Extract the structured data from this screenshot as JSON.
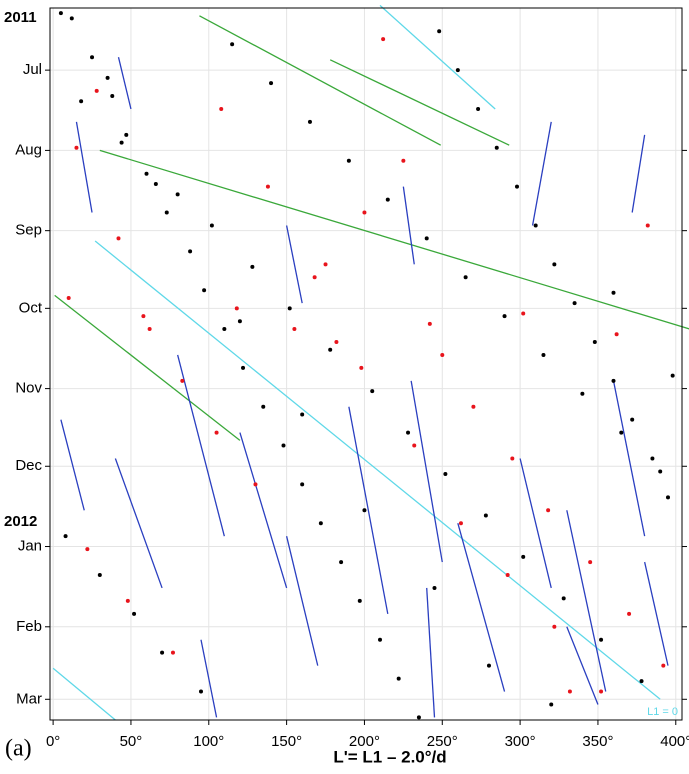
{
  "chart_data": {
    "type": "scatter",
    "xlabel": "L'= L1 – 2.0°/d",
    "panel_label": "(a)",
    "year_labels": [
      "2011",
      "2012"
    ],
    "annotation": "L1 = 0",
    "annotation_color": "#5fd8e8",
    "grid": true,
    "xlim": [
      -2,
      404
    ],
    "ylim": [
      -24,
      251
    ],
    "xticks": [
      {
        "value": 0,
        "label": "0°"
      },
      {
        "value": 50,
        "label": "50°"
      },
      {
        "value": 100,
        "label": "100°"
      },
      {
        "value": 150,
        "label": "150°"
      },
      {
        "value": 200,
        "label": "200°"
      },
      {
        "value": 250,
        "label": "250°"
      },
      {
        "value": 300,
        "label": "300°"
      },
      {
        "value": 350,
        "label": "350°"
      },
      {
        "value": 400,
        "label": "400°"
      }
    ],
    "yticks": [
      {
        "value": 0,
        "label": "Jul"
      },
      {
        "value": 31,
        "label": "Aug"
      },
      {
        "value": 62,
        "label": "Sep"
      },
      {
        "value": 92,
        "label": "Oct"
      },
      {
        "value": 123,
        "label": "Nov"
      },
      {
        "value": 153,
        "label": "Dec"
      },
      {
        "value": 184,
        "label": "Jan"
      },
      {
        "value": 215,
        "label": "Feb"
      },
      {
        "value": 243,
        "label": "Mar"
      }
    ],
    "series": [
      {
        "mode": "lines",
        "color": "#5fd8e8",
        "x": [
          210,
          284,
          null,
          27,
          390,
          null,
          0,
          40
        ],
        "values": [
          -25,
          15,
          null,
          66,
          243,
          null,
          231,
          251
        ]
      },
      {
        "mode": "lines",
        "color": "#3aa83a",
        "x": [
          94,
          249,
          null,
          178,
          293,
          null,
          30,
          409,
          null,
          1,
          120
        ],
        "values": [
          -21,
          29,
          null,
          -4,
          29,
          null,
          31,
          100,
          null,
          87,
          143
        ]
      },
      {
        "mode": "lines",
        "color": "#2a3fc0",
        "x": [
          42,
          50,
          null,
          15,
          25,
          null,
          150,
          160,
          null,
          225,
          232,
          null,
          320,
          308,
          null,
          380,
          372,
          null,
          5,
          20,
          null,
          40,
          70,
          null,
          80,
          110,
          null,
          120,
          150,
          null,
          150,
          170,
          null,
          190,
          215,
          null,
          230,
          250,
          null,
          260,
          290,
          null,
          300,
          320,
          null,
          330,
          355,
          null,
          360,
          380,
          null,
          380,
          395,
          null,
          95,
          105,
          null,
          240,
          245,
          null,
          330,
          350
        ],
        "values": [
          -5,
          15,
          null,
          20,
          55,
          null,
          60,
          90,
          null,
          45,
          75,
          null,
          20,
          60,
          null,
          25,
          55,
          null,
          135,
          170,
          null,
          150,
          200,
          null,
          110,
          180,
          null,
          140,
          200,
          null,
          180,
          230,
          null,
          130,
          210,
          null,
          120,
          190,
          null,
          175,
          240,
          null,
          150,
          200,
          null,
          170,
          240,
          null,
          120,
          180,
          null,
          190,
          230,
          null,
          220,
          250,
          null,
          200,
          250,
          null,
          215,
          245
        ]
      },
      {
        "mode": "markers",
        "color": "#000000",
        "x": [
          12,
          25,
          38,
          47,
          60,
          73,
          88,
          97,
          110,
          122,
          135,
          148,
          160,
          172,
          185,
          197,
          210,
          222,
          235,
          248,
          260,
          273,
          285,
          298,
          310,
          322,
          335,
          348,
          360,
          372,
          385,
          395,
          8,
          30,
          52,
          70,
          95,
          115,
          140,
          165,
          190,
          215,
          240,
          265,
          290,
          315,
          340,
          365,
          390,
          18,
          44,
          66,
          102,
          128,
          152,
          178,
          205,
          228,
          252,
          278,
          302,
          328,
          352,
          378,
          5,
          35,
          80,
          120,
          160,
          200,
          245,
          280,
          320,
          360,
          398
        ],
        "values": [
          -20,
          -5,
          10,
          25,
          40,
          55,
          70,
          85,
          100,
          115,
          130,
          145,
          160,
          175,
          190,
          205,
          220,
          235,
          250,
          -15,
          0,
          15,
          30,
          45,
          60,
          75,
          90,
          105,
          120,
          135,
          150,
          165,
          180,
          195,
          210,
          225,
          240,
          -10,
          5,
          20,
          35,
          50,
          65,
          80,
          95,
          110,
          125,
          140,
          155,
          12,
          28,
          44,
          60,
          76,
          92,
          108,
          124,
          140,
          156,
          172,
          188,
          204,
          220,
          236,
          -22,
          3,
          48,
          97,
          133,
          170,
          200,
          230,
          245,
          86,
          118
        ]
      },
      {
        "mode": "markers",
        "color": "#e8141c",
        "x": [
          15,
          42,
          58,
          83,
          105,
          130,
          155,
          175,
          200,
          225,
          250,
          270,
          295,
          318,
          345,
          370,
          392,
          22,
          48,
          77,
          108,
          138,
          168,
          198,
          232,
          262,
          292,
          322,
          352,
          382,
          10,
          62,
          118,
          182,
          242,
          302,
          362,
          28,
          212,
          332
        ],
        "values": [
          30,
          65,
          95,
          120,
          140,
          160,
          100,
          75,
          55,
          35,
          110,
          130,
          150,
          170,
          190,
          210,
          230,
          185,
          205,
          225,
          15,
          45,
          80,
          115,
          145,
          175,
          195,
          215,
          240,
          60,
          88,
          100,
          92,
          105,
          98,
          94,
          102,
          8,
          -12,
          240
        ]
      }
    ]
  }
}
